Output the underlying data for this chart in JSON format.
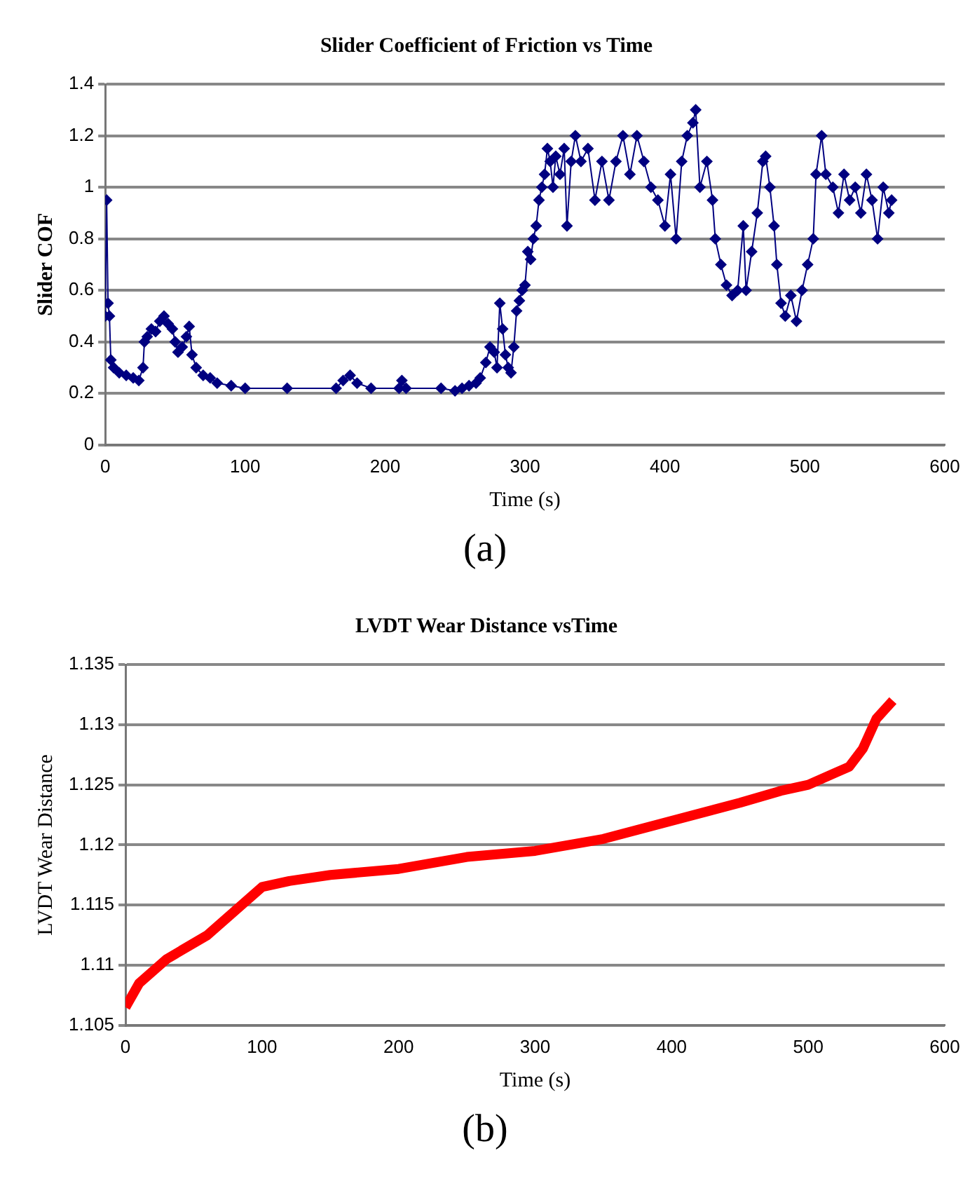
{
  "chart_data": [
    {
      "type": "line",
      "title": "Slider Coefficient of Friction vs Time",
      "xlabel": "Time (s)",
      "ylabel": "Slider COF",
      "annotations": [
        "(a)"
      ],
      "marker": "diamond",
      "grid": "y",
      "xlim": [
        0,
        600
      ],
      "xticks": [
        0,
        100,
        200,
        300,
        400,
        500,
        600
      ],
      "ylim": [
        0,
        1.4
      ],
      "yticks": [
        0,
        0.2,
        0.4,
        0.6,
        0.8,
        1,
        1.2,
        1.4
      ],
      "series": [
        {
          "color": "#000080",
          "x": [
            0,
            1,
            2,
            3,
            4,
            6,
            10,
            15,
            20,
            24,
            27,
            28,
            30,
            33,
            36,
            39,
            42,
            45,
            48,
            50,
            52,
            55,
            58,
            60,
            62,
            65,
            70,
            75,
            80,
            90,
            100,
            130,
            165,
            170,
            175,
            180,
            190,
            210,
            212,
            215,
            240,
            250,
            255,
            260,
            265,
            268,
            272,
            275,
            278,
            280,
            282,
            284,
            286,
            288,
            290,
            292,
            294,
            296,
            298,
            300,
            302,
            304,
            306,
            308,
            310,
            312,
            314,
            316,
            318,
            320,
            322,
            325,
            328,
            330,
            333,
            336,
            340,
            345,
            350,
            355,
            360,
            365,
            370,
            375,
            380,
            385,
            390,
            395,
            400,
            404,
            408,
            412,
            416,
            420,
            422,
            425,
            430,
            434,
            436,
            440,
            444,
            448,
            452,
            456,
            458,
            462,
            466,
            470,
            472,
            475,
            478,
            480,
            483,
            486,
            490,
            494,
            498,
            502,
            506,
            508,
            512,
            515,
            520,
            524,
            528,
            532,
            536,
            540,
            544,
            548,
            552,
            556,
            560,
            562
          ],
          "values": [
            0.5,
            0.95,
            0.55,
            0.5,
            0.33,
            0.3,
            0.28,
            0.27,
            0.26,
            0.25,
            0.3,
            0.4,
            0.42,
            0.45,
            0.44,
            0.48,
            0.5,
            0.47,
            0.45,
            0.4,
            0.36,
            0.38,
            0.42,
            0.46,
            0.35,
            0.3,
            0.27,
            0.26,
            0.24,
            0.23,
            0.22,
            0.22,
            0.22,
            0.25,
            0.27,
            0.24,
            0.22,
            0.22,
            0.25,
            0.22,
            0.22,
            0.21,
            0.22,
            0.23,
            0.24,
            0.26,
            0.32,
            0.38,
            0.36,
            0.3,
            0.55,
            0.45,
            0.35,
            0.3,
            0.28,
            0.38,
            0.52,
            0.56,
            0.6,
            0.62,
            0.75,
            0.72,
            0.8,
            0.85,
            0.95,
            1,
            1.05,
            1.15,
            1.1,
            1,
            1.12,
            1.05,
            1.15,
            0.85,
            1.1,
            1.2,
            1.1,
            1.15,
            0.95,
            1.1,
            0.95,
            1.1,
            1.2,
            1.05,
            1.2,
            1.1,
            1,
            0.95,
            0.85,
            1.05,
            0.8,
            1.1,
            1.2,
            1.25,
            1.3,
            1,
            1.1,
            0.95,
            0.8,
            0.7,
            0.62,
            0.58,
            0.6,
            0.85,
            0.6,
            0.75,
            0.9,
            1.1,
            1.12,
            1,
            0.85,
            0.7,
            0.55,
            0.5,
            0.58,
            0.48,
            0.6,
            0.7,
            0.8,
            1.05,
            1.2,
            1.05,
            1,
            0.9,
            1.05,
            0.95,
            1,
            0.9,
            1.05,
            0.95,
            0.8,
            1,
            0.9,
            0.95
          ]
        }
      ]
    },
    {
      "type": "line",
      "title": "LVDT Wear Distance vsTime",
      "xlabel": "Time (s)",
      "ylabel": "LVDT Wear Distance",
      "annotations": [
        "(b)"
      ],
      "marker": "none",
      "grid": "y",
      "xlim": [
        0,
        600
      ],
      "xticks": [
        0,
        100,
        200,
        300,
        400,
        500,
        600
      ],
      "ylim": [
        1.105,
        1.135
      ],
      "yticks": [
        1.105,
        1.11,
        1.115,
        1.12,
        1.125,
        1.13,
        1.135
      ],
      "series": [
        {
          "color": "#ff0000",
          "x": [
            0,
            10,
            30,
            60,
            80,
            100,
            120,
            150,
            200,
            250,
            300,
            350,
            400,
            450,
            480,
            500,
            520,
            530,
            540,
            550,
            562
          ],
          "values": [
            1.1065,
            1.1085,
            1.1105,
            1.1125,
            1.1145,
            1.1165,
            1.117,
            1.1175,
            1.118,
            1.119,
            1.1195,
            1.1205,
            1.122,
            1.1235,
            1.1245,
            1.125,
            1.126,
            1.1265,
            1.128,
            1.1305,
            1.132
          ]
        }
      ]
    }
  ]
}
